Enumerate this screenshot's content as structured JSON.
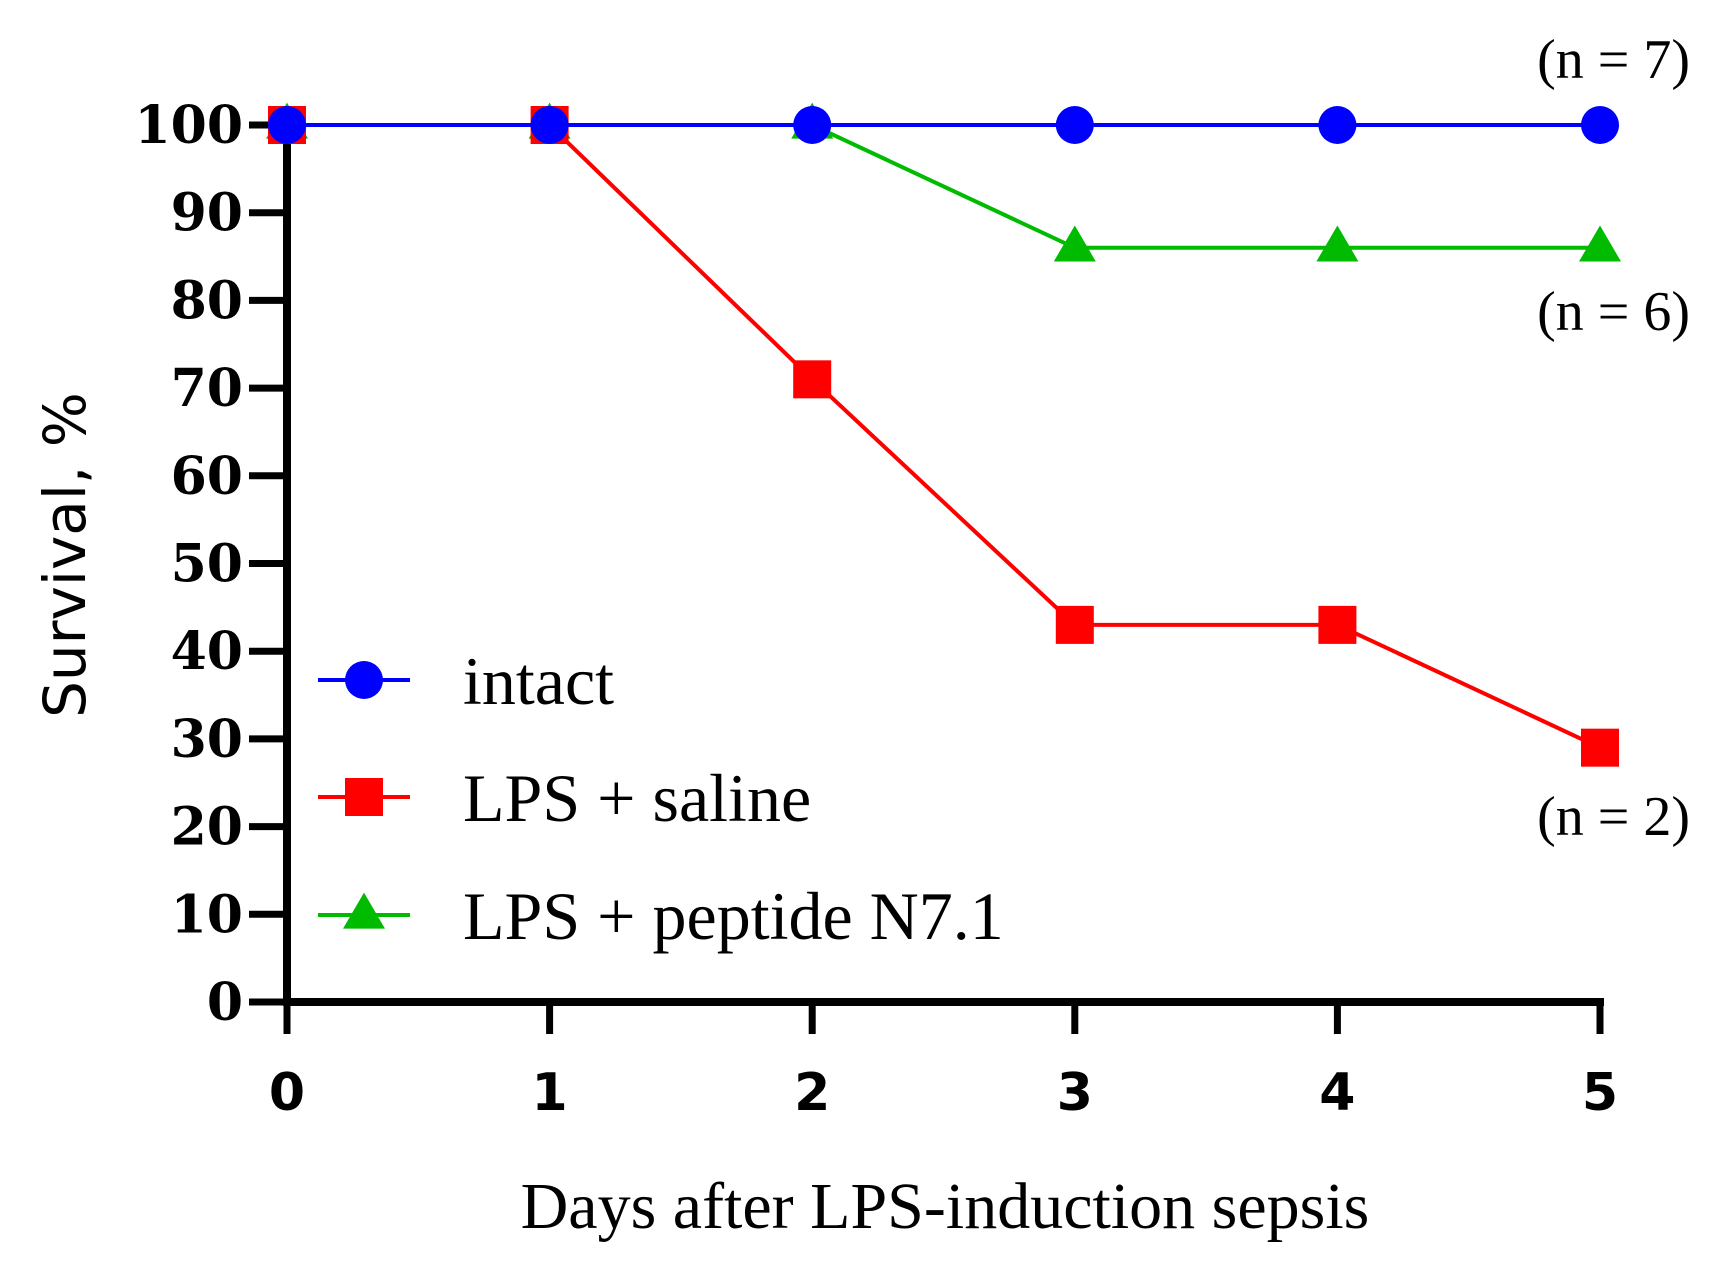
{
  "chart_data": {
    "type": "line",
    "title": "",
    "xlabel": "Days after LPS-induction sepsis",
    "ylabel": "Survival, %",
    "x": [
      0,
      1,
      2,
      3,
      4,
      5
    ],
    "xlim": [
      0,
      5
    ],
    "ylim": [
      0,
      100
    ],
    "xticks": [
      "0",
      "1",
      "2",
      "3",
      "4",
      "5"
    ],
    "yticks": [
      "0",
      "10",
      "20",
      "30",
      "40",
      "50",
      "60",
      "70",
      "80",
      "90",
      "100"
    ],
    "grid": false,
    "legend_position": "lower-left",
    "series": [
      {
        "name": "intact",
        "color": "#0000ff",
        "marker": "circle",
        "values": [
          100,
          100,
          100,
          100,
          100,
          100
        ]
      },
      {
        "name": "LPS + saline",
        "color": "#ff0000",
        "marker": "square",
        "values": [
          100,
          100,
          71,
          43,
          43,
          29
        ]
      },
      {
        "name": "LPS + peptide N7.1",
        "color": "#00bb00",
        "marker": "triangle",
        "values": [
          100,
          100,
          100,
          86,
          86,
          86
        ]
      }
    ],
    "annotations": [
      {
        "text": "(n = 7)",
        "series": "intact"
      },
      {
        "text": "(n = 6)",
        "series": "LPS + peptide N7.1"
      },
      {
        "text": "(n = 2)",
        "series": "LPS + saline"
      }
    ]
  }
}
